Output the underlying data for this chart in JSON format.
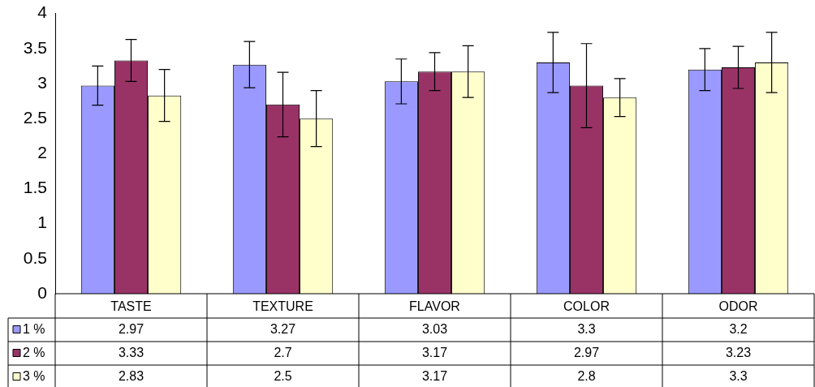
{
  "chart_data": {
    "type": "bar",
    "categories": [
      "TASTE",
      "TEXTURE",
      "FLAVOR",
      "COLOR",
      "ODOR"
    ],
    "series": [
      {
        "name": "1 %",
        "color": "#9999ff",
        "values": [
          2.97,
          3.27,
          3.03,
          3.3,
          3.2
        ],
        "errors": [
          0.28,
          0.33,
          0.32,
          0.43,
          0.3
        ]
      },
      {
        "name": "2 %",
        "color": "#993366",
        "values": [
          3.33,
          2.7,
          3.17,
          2.97,
          3.23
        ],
        "errors": [
          0.3,
          0.46,
          0.27,
          0.6,
          0.3
        ]
      },
      {
        "name": "3 %",
        "color": "#ffffcc",
        "values": [
          2.83,
          2.5,
          3.17,
          2.8,
          3.3
        ],
        "errors": [
          0.37,
          0.4,
          0.37,
          0.27,
          0.43
        ]
      }
    ],
    "ylim": [
      0,
      4
    ],
    "yticks": [
      0,
      0.5,
      1,
      1.5,
      2,
      2.5,
      3,
      3.5,
      4
    ],
    "grid": false,
    "legend": "bottom",
    "data_labels": true
  }
}
